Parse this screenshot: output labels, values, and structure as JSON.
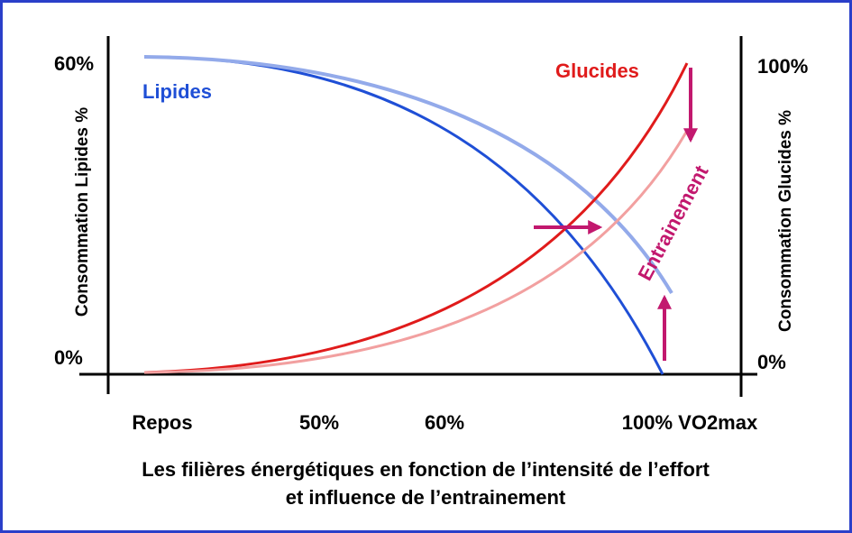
{
  "axes": {
    "left_label": "Consommation Lipides %",
    "left_top": "60%",
    "left_bottom": "0%",
    "right_label": "Consommation Glucides %",
    "right_top": "100%",
    "right_bottom": "0%",
    "x_labels": [
      "Repos",
      "50%",
      "60%",
      "100% VO2max"
    ]
  },
  "curves": {
    "lipides": "Lipides",
    "glucides": "Glucides",
    "training": "Entrainement"
  },
  "title": [
    "Les filières énergétiques en fonction de l’intensité de l’effort",
    "et influence de l’entrainement"
  ]
}
